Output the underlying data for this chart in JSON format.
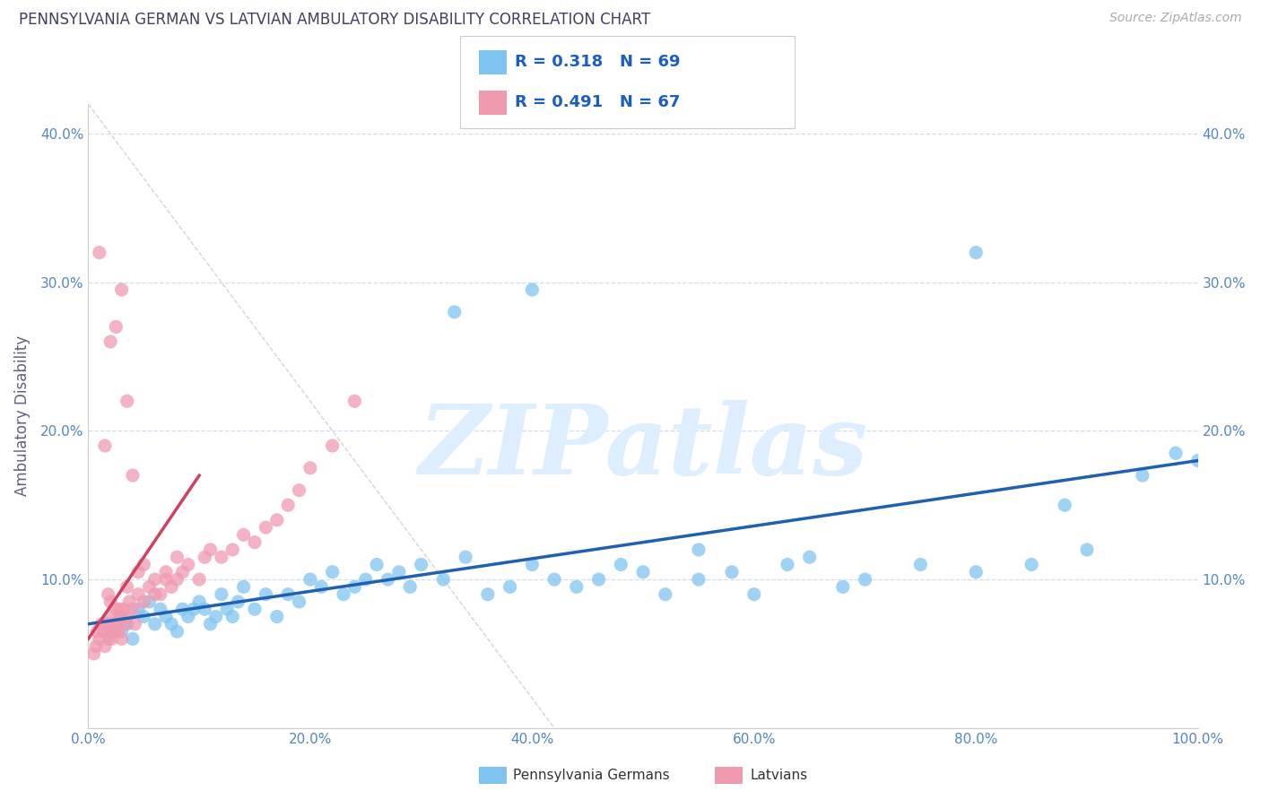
{
  "title": "PENNSYLVANIA GERMAN VS LATVIAN AMBULATORY DISABILITY CORRELATION CHART",
  "source_text": "Source: ZipAtlas.com",
  "ylabel": "Ambulatory Disability",
  "xlim": [
    0,
    100
  ],
  "ylim": [
    0,
    42
  ],
  "xticks": [
    0,
    20,
    40,
    60,
    80,
    100
  ],
  "xtick_labels": [
    "0.0%",
    "20.0%",
    "40.0%",
    "60.0%",
    "80.0%",
    "100.0%"
  ],
  "yticks": [
    0,
    10,
    20,
    30,
    40
  ],
  "ytick_labels_left": [
    "",
    "10.0%",
    "20.0%",
    "30.0%",
    "40.0%"
  ],
  "ytick_labels_right": [
    "",
    "10.0%",
    "20.0%",
    "30.0%",
    "40.0%"
  ],
  "r_blue": 0.318,
  "n_blue": 69,
  "r_pink": 0.491,
  "n_pink": 67,
  "blue_color": "#7fc4f0",
  "pink_color": "#f09ab0",
  "blue_line_color": "#2060b0",
  "pink_line_color": "#d04060",
  "title_color": "#404060",
  "axis_label_color": "#606080",
  "tick_color": "#5585c5",
  "grid_color": "#d0dff0",
  "watermark_color": "#ddeeff",
  "watermark_text": "ZIPatlas",
  "legend_r_color": "#1a5fbd",
  "diag_color": "#e0d0d0",
  "blue_x": [
    3.0,
    3.5,
    4.0,
    4.5,
    5.0,
    5.5,
    6.0,
    6.5,
    7.0,
    7.5,
    8.0,
    8.5,
    9.0,
    9.5,
    10.0,
    10.5,
    11.0,
    11.5,
    12.0,
    12.5,
    13.0,
    13.5,
    14.0,
    15.0,
    16.0,
    17.0,
    18.0,
    19.0,
    20.0,
    21.0,
    22.0,
    23.0,
    24.0,
    25.0,
    26.0,
    27.0,
    28.0,
    29.0,
    30.0,
    32.0,
    34.0,
    36.0,
    38.0,
    40.0,
    42.0,
    44.0,
    46.0,
    48.0,
    50.0,
    52.0,
    55.0,
    58.0,
    60.0,
    63.0,
    65.0,
    68.0,
    70.0,
    75.0,
    80.0,
    85.0,
    88.0,
    90.0,
    95.0,
    98.0,
    100.0,
    33.0,
    40.0,
    55.0,
    80.0
  ],
  "blue_y": [
    6.5,
    7.0,
    6.0,
    8.0,
    7.5,
    8.5,
    7.0,
    8.0,
    7.5,
    7.0,
    6.5,
    8.0,
    7.5,
    8.0,
    8.5,
    8.0,
    7.0,
    7.5,
    9.0,
    8.0,
    7.5,
    8.5,
    9.5,
    8.0,
    9.0,
    7.5,
    9.0,
    8.5,
    10.0,
    9.5,
    10.5,
    9.0,
    9.5,
    10.0,
    11.0,
    10.0,
    10.5,
    9.5,
    11.0,
    10.0,
    11.5,
    9.0,
    9.5,
    11.0,
    10.0,
    9.5,
    10.0,
    11.0,
    10.5,
    9.0,
    10.0,
    10.5,
    9.0,
    11.0,
    11.5,
    9.5,
    10.0,
    11.0,
    10.5,
    11.0,
    15.0,
    12.0,
    17.0,
    18.5,
    18.0,
    28.0,
    29.5,
    12.0,
    32.0
  ],
  "pink_x": [
    0.5,
    0.7,
    0.8,
    1.0,
    1.2,
    1.4,
    1.5,
    1.7,
    1.8,
    2.0,
    2.0,
    2.1,
    2.2,
    2.3,
    2.5,
    2.5,
    2.6,
    2.7,
    2.8,
    3.0,
    3.0,
    3.2,
    3.3,
    3.5,
    3.7,
    4.0,
    4.2,
    4.5,
    5.0,
    5.5,
    6.0,
    6.5,
    7.0,
    7.5,
    8.0,
    8.5,
    9.0,
    10.0,
    10.5,
    11.0,
    12.0,
    13.0,
    14.0,
    15.0,
    16.0,
    17.0,
    18.0,
    19.0,
    20.0,
    22.0,
    24.0,
    1.5,
    2.5,
    4.0,
    1.0,
    2.0,
    3.0,
    3.5,
    6.0,
    8.0,
    1.8,
    2.0,
    2.8,
    3.5,
    4.5,
    5.0,
    7.0
  ],
  "pink_y": [
    5.0,
    5.5,
    6.5,
    6.0,
    7.0,
    6.5,
    5.5,
    7.0,
    6.0,
    6.5,
    7.5,
    6.0,
    7.0,
    6.5,
    7.0,
    8.0,
    7.0,
    6.5,
    7.5,
    6.0,
    7.5,
    8.0,
    7.0,
    7.5,
    8.5,
    8.0,
    7.0,
    9.0,
    8.5,
    9.5,
    9.0,
    9.0,
    10.0,
    9.5,
    10.0,
    10.5,
    11.0,
    10.0,
    11.5,
    12.0,
    11.5,
    12.0,
    13.0,
    12.5,
    13.5,
    14.0,
    15.0,
    16.0,
    17.5,
    19.0,
    22.0,
    19.0,
    27.0,
    17.0,
    32.0,
    26.0,
    29.5,
    22.0,
    10.0,
    11.5,
    9.0,
    8.5,
    8.0,
    9.5,
    10.5,
    11.0,
    10.5
  ]
}
